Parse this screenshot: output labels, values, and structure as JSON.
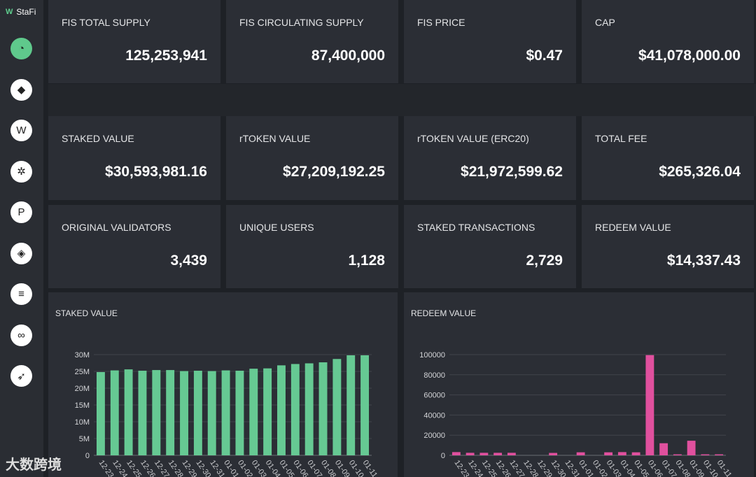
{
  "brand": {
    "name": "StaFi"
  },
  "sidebar": {
    "items": [
      {
        "icon": "dashboard-icon",
        "glyph": "◔"
      },
      {
        "icon": "ethereum-icon",
        "glyph": "◆"
      },
      {
        "icon": "stafi-icon",
        "glyph": "W"
      },
      {
        "icon": "cosmos-icon",
        "glyph": "✲"
      },
      {
        "icon": "polkadot-icon",
        "glyph": "P"
      },
      {
        "icon": "bnb-icon",
        "glyph": "◈"
      },
      {
        "icon": "solana-icon",
        "glyph": "≡"
      },
      {
        "icon": "polygon-icon",
        "glyph": "∞"
      },
      {
        "icon": "kusama-icon",
        "glyph": "➶"
      }
    ]
  },
  "stats": [
    {
      "label": "FIS TOTAL SUPPLY",
      "value": "125,253,941"
    },
    {
      "label": "FIS CIRCULATING SUPPLY",
      "value": "87,400,000"
    },
    {
      "label": "FIS PRICE",
      "value": "$0.47"
    },
    {
      "label": "CAP",
      "value": "$41,078,000.00"
    },
    {
      "label": "STAKED VALUE",
      "value": "$30,593,981.16"
    },
    {
      "label": "rTOKEN VALUE",
      "value": "$27,209,192.25"
    },
    {
      "label": "rTOKEN VALUE (ERC20)",
      "value": "$21,972,599.62"
    },
    {
      "label": "TOTAL FEE",
      "value": "$265,326.04"
    },
    {
      "label": "ORIGINAL VALIDATORS",
      "value": "3,439"
    },
    {
      "label": "UNIQUE USERS",
      "value": "1,128"
    },
    {
      "label": "STAKED TRANSACTIONS",
      "value": "2,729"
    },
    {
      "label": "REDEEM VALUE",
      "value": "$14,337.43"
    }
  ],
  "watermark": "大数跨境",
  "chart_data": [
    {
      "type": "bar",
      "title": "STAKED VALUE",
      "color": "#66c993",
      "categories": [
        "12-23",
        "12-24",
        "12-25",
        "12-26",
        "12-27",
        "12-28",
        "12-29",
        "12-30",
        "12-31",
        "01-01",
        "01-02",
        "01-03",
        "01-04",
        "01-05",
        "01-06",
        "01-07",
        "01-08",
        "01-09",
        "01-10",
        "01-11"
      ],
      "values": [
        24800000,
        25300000,
        25600000,
        25200000,
        25400000,
        25400000,
        25100000,
        25200000,
        25100000,
        25300000,
        25200000,
        25800000,
        25900000,
        26800000,
        27200000,
        27400000,
        27700000,
        28700000,
        29800000,
        29800000
      ],
      "yticks": [
        "0",
        "5M",
        "10M",
        "15M",
        "20M",
        "25M",
        "30M"
      ],
      "ylim": [
        0,
        30000000
      ]
    },
    {
      "type": "bar",
      "title": "REDEEM VALUE",
      "color": "#e0509e",
      "categories": [
        "12-23",
        "12-24",
        "12-25",
        "12-26",
        "12-27",
        "12-28",
        "12-29",
        "12-30",
        "12-31",
        "01-01",
        "01-02",
        "01-03",
        "01-04",
        "01-05",
        "01-06",
        "01-07",
        "01-08",
        "01-09",
        "01-10",
        "01-11"
      ],
      "values": [
        3200,
        2500,
        2500,
        2500,
        2500,
        0,
        0,
        2400,
        0,
        3000,
        0,
        3000,
        3200,
        3000,
        99500,
        12000,
        1000,
        14500,
        1000,
        1000
      ],
      "yticks": [
        "0",
        "20000",
        "40000",
        "60000",
        "80000",
        "100000"
      ],
      "ylim": [
        0,
        100000
      ]
    }
  ]
}
